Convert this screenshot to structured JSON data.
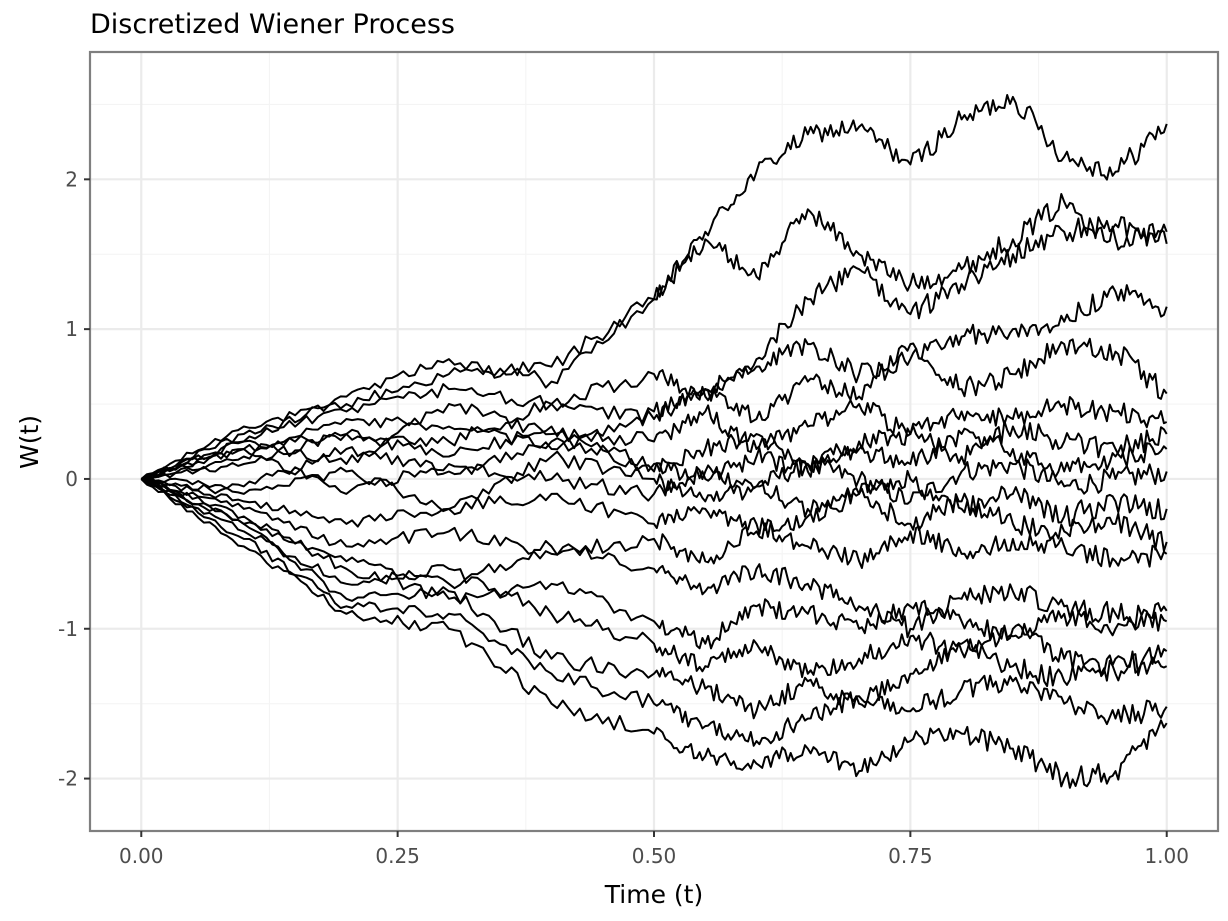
{
  "chart_data": {
    "type": "line",
    "title": "Discretized Wiener Process",
    "xlabel": "Time (t)",
    "ylabel": "W(t)",
    "xlim": [
      -0.05,
      1.05
    ],
    "ylim": [
      -2.35,
      2.85
    ],
    "xticks": [
      0.0,
      0.25,
      0.5,
      0.75,
      1.0
    ],
    "xtick_labels": [
      "0.00",
      "0.25",
      "0.50",
      "0.75",
      "1.00"
    ],
    "yticks": [
      -2,
      -1,
      0,
      1,
      2
    ],
    "ytick_labels": [
      "-2",
      "-1",
      "0",
      "1",
      "2"
    ],
    "grid": true,
    "legend": "none",
    "line_color": "#000000",
    "background": "#ffffff",
    "series": [
      {
        "x": [
          0,
          0.1,
          0.2,
          0.3,
          0.4,
          0.5,
          0.55,
          0.6,
          0.65,
          0.7,
          0.75,
          0.8,
          0.85,
          0.9,
          0.95,
          1.0
        ],
        "values": [
          0,
          0.35,
          0.5,
          0.7,
          0.75,
          1.2,
          1.65,
          2.05,
          2.3,
          2.35,
          2.1,
          2.4,
          2.55,
          2.15,
          2.05,
          2.37
        ]
      },
      {
        "x": [
          0,
          0.1,
          0.2,
          0.3,
          0.4,
          0.5,
          0.55,
          0.6,
          0.65,
          0.7,
          0.75,
          0.8,
          0.85,
          0.9,
          0.95,
          1.0
        ],
        "values": [
          0,
          0.25,
          0.55,
          0.8,
          0.65,
          1.2,
          1.6,
          1.35,
          1.8,
          1.5,
          1.3,
          1.4,
          1.6,
          1.85,
          1.6,
          1.65
        ]
      },
      {
        "x": [
          0,
          0.1,
          0.2,
          0.3,
          0.4,
          0.5,
          0.55,
          0.6,
          0.65,
          0.7,
          0.75,
          0.8,
          0.85,
          0.9,
          0.95,
          1.0
        ],
        "values": [
          0,
          0.3,
          0.45,
          0.6,
          0.5,
          0.7,
          0.55,
          0.8,
          1.2,
          1.4,
          1.1,
          1.3,
          1.5,
          1.65,
          1.7,
          1.57
        ]
      },
      {
        "x": [
          0,
          0.1,
          0.2,
          0.3,
          0.4,
          0.5,
          0.55,
          0.6,
          0.65,
          0.7,
          0.75,
          0.8,
          0.85,
          0.9,
          0.95,
          1.0
        ],
        "values": [
          0,
          0.2,
          0.3,
          0.25,
          0.5,
          0.4,
          0.6,
          0.75,
          0.9,
          0.7,
          0.8,
          0.95,
          1.0,
          1.05,
          1.25,
          1.15
        ]
      },
      {
        "x": [
          0,
          0.1,
          0.2,
          0.3,
          0.4,
          0.5,
          0.55,
          0.6,
          0.65,
          0.7,
          0.75,
          0.8,
          0.85,
          0.9,
          0.95,
          1.0
        ],
        "values": [
          0,
          0.15,
          0.4,
          0.35,
          0.2,
          0.45,
          0.6,
          0.4,
          0.65,
          0.55,
          0.9,
          0.6,
          0.7,
          0.9,
          0.85,
          0.57
        ]
      },
      {
        "x": [
          0,
          0.1,
          0.2,
          0.3,
          0.4,
          0.5,
          0.55,
          0.6,
          0.65,
          0.7,
          0.75,
          0.8,
          0.85,
          0.9,
          0.95,
          1.0
        ],
        "values": [
          0,
          0.25,
          0.1,
          0.5,
          0.3,
          0.25,
          0.45,
          0.2,
          0.35,
          0.5,
          0.3,
          0.45,
          0.4,
          0.5,
          0.45,
          0.38
        ]
      },
      {
        "x": [
          0,
          0.1,
          0.2,
          0.3,
          0.4,
          0.5,
          0.55,
          0.6,
          0.65,
          0.7,
          0.75,
          0.8,
          0.85,
          0.9,
          0.95,
          1.0
        ],
        "values": [
          0,
          0.1,
          0.3,
          0.15,
          0.35,
          0.05,
          0.2,
          0.3,
          0.1,
          0.25,
          0.3,
          0.15,
          0.35,
          0.25,
          0.2,
          0.3
        ]
      },
      {
        "x": [
          0,
          0.1,
          0.2,
          0.3,
          0.4,
          0.5,
          0.55,
          0.6,
          0.65,
          0.7,
          0.75,
          0.8,
          0.85,
          0.9,
          0.95,
          1.0
        ],
        "values": [
          0,
          -0.05,
          0.2,
          0.05,
          0.25,
          0.1,
          0.0,
          0.15,
          0.05,
          0.2,
          0.1,
          0.3,
          0.2,
          0.05,
          0.15,
          0.2
        ]
      },
      {
        "x": [
          0,
          0.1,
          0.2,
          0.3,
          0.4,
          0.5,
          0.55,
          0.6,
          0.65,
          0.7,
          0.75,
          0.8,
          0.85,
          0.9,
          0.95,
          1.0
        ],
        "values": [
          0,
          0.2,
          -0.1,
          0.1,
          0.0,
          -0.1,
          0.05,
          -0.05,
          0.1,
          0.0,
          -0.15,
          0.05,
          0.1,
          -0.05,
          0.0,
          0.05
        ]
      },
      {
        "x": [
          0,
          0.1,
          0.2,
          0.3,
          0.4,
          0.5,
          0.55,
          0.6,
          0.65,
          0.7,
          0.75,
          0.8,
          0.85,
          0.9,
          0.95,
          1.0
        ],
        "values": [
          0,
          -0.1,
          0.05,
          -0.2,
          0.15,
          0.0,
          -0.15,
          -0.05,
          -0.2,
          -0.1,
          0.0,
          -0.2,
          -0.1,
          -0.25,
          -0.15,
          -0.2
        ]
      },
      {
        "x": [
          0,
          0.1,
          0.2,
          0.3,
          0.4,
          0.5,
          0.55,
          0.6,
          0.65,
          0.7,
          0.75,
          0.8,
          0.85,
          0.9,
          0.95,
          1.0
        ],
        "values": [
          0,
          -0.15,
          -0.3,
          -0.2,
          -0.1,
          -0.3,
          -0.2,
          -0.35,
          -0.25,
          -0.1,
          -0.3,
          -0.15,
          -0.3,
          -0.35,
          -0.3,
          -0.42
        ]
      },
      {
        "x": [
          0,
          0.1,
          0.2,
          0.3,
          0.4,
          0.5,
          0.55,
          0.6,
          0.65,
          0.7,
          0.75,
          0.8,
          0.85,
          0.9,
          0.95,
          1.0
        ],
        "values": [
          0,
          -0.2,
          -0.45,
          -0.35,
          -0.5,
          -0.4,
          -0.55,
          -0.3,
          -0.45,
          -0.55,
          -0.35,
          -0.5,
          -0.4,
          -0.45,
          -0.55,
          -0.5
        ]
      },
      {
        "x": [
          0,
          0.1,
          0.2,
          0.3,
          0.4,
          0.5,
          0.55,
          0.6,
          0.65,
          0.7,
          0.75,
          0.8,
          0.85,
          0.9,
          0.95,
          1.0
        ],
        "values": [
          0,
          -0.3,
          -0.55,
          -0.7,
          -0.45,
          -0.6,
          -0.75,
          -0.6,
          -0.7,
          -0.85,
          -1.0,
          -0.8,
          -0.75,
          -0.85,
          -0.9,
          -0.95
        ]
      },
      {
        "x": [
          0,
          0.1,
          0.2,
          0.3,
          0.4,
          0.5,
          0.55,
          0.6,
          0.65,
          0.7,
          0.75,
          0.8,
          0.85,
          0.9,
          0.95,
          1.0
        ],
        "values": [
          0,
          -0.25,
          -0.6,
          -0.8,
          -0.7,
          -0.95,
          -1.1,
          -0.85,
          -0.9,
          -1.0,
          -0.85,
          -0.95,
          -1.05,
          -0.9,
          -1.0,
          -0.88
        ]
      },
      {
        "x": [
          0,
          0.1,
          0.2,
          0.3,
          0.4,
          0.5,
          0.55,
          0.6,
          0.65,
          0.7,
          0.75,
          0.8,
          0.85,
          0.9,
          0.95,
          1.0
        ],
        "values": [
          0,
          -0.35,
          -0.7,
          -0.6,
          -0.9,
          -1.1,
          -1.25,
          -1.1,
          -1.3,
          -1.2,
          -1.05,
          -1.15,
          -1.0,
          -1.2,
          -1.3,
          -1.15
        ]
      },
      {
        "x": [
          0,
          0.1,
          0.2,
          0.3,
          0.4,
          0.5,
          0.55,
          0.6,
          0.65,
          0.7,
          0.75,
          0.8,
          0.85,
          0.9,
          0.95,
          1.0
        ],
        "values": [
          0,
          -0.3,
          -0.8,
          -0.75,
          -1.2,
          -1.3,
          -1.4,
          -1.55,
          -1.35,
          -1.5,
          -1.3,
          -1.1,
          -1.25,
          -1.35,
          -1.2,
          -1.25
        ]
      },
      {
        "x": [
          0,
          0.1,
          0.2,
          0.3,
          0.4,
          0.5,
          0.55,
          0.6,
          0.65,
          0.7,
          0.75,
          0.8,
          0.85,
          0.9,
          0.95,
          1.0
        ],
        "values": [
          0,
          -0.4,
          -0.85,
          -0.9,
          -1.3,
          -1.5,
          -1.65,
          -1.75,
          -1.6,
          -1.45,
          -1.55,
          -1.4,
          -1.35,
          -1.5,
          -1.6,
          -1.52
        ]
      },
      {
        "x": [
          0,
          0.1,
          0.2,
          0.3,
          0.4,
          0.5,
          0.55,
          0.6,
          0.65,
          0.7,
          0.75,
          0.8,
          0.85,
          0.9,
          0.95,
          1.0
        ],
        "values": [
          0,
          -0.45,
          -0.9,
          -1.0,
          -1.5,
          -1.7,
          -1.85,
          -1.9,
          -1.8,
          -1.95,
          -1.75,
          -1.7,
          -1.8,
          -2.0,
          -1.95,
          -1.63
        ]
      }
    ]
  }
}
